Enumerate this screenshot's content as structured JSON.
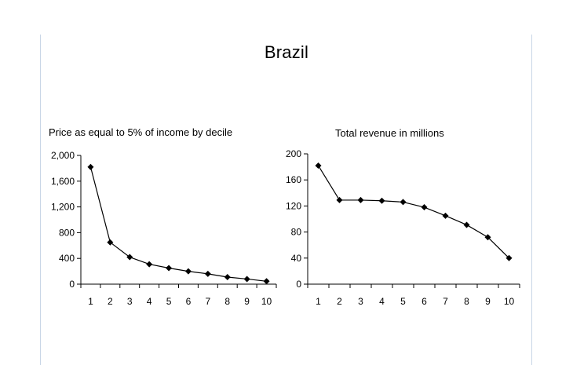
{
  "title": "Brazil",
  "chart_data": [
    {
      "type": "line",
      "title": "Price as equal to 5% of income by decile",
      "xlabel": "",
      "ylabel": "",
      "x": [
        1,
        2,
        3,
        4,
        5,
        6,
        7,
        8,
        9,
        10
      ],
      "x_tick_labels": [
        "1",
        "2",
        "3",
        "4",
        "5",
        "6",
        "7",
        "8",
        "9",
        "10"
      ],
      "y_tick_labels": [
        "0",
        "400",
        "800",
        "1,200",
        "1,600",
        "2,000"
      ],
      "y_ticks": [
        0,
        400,
        800,
        1200,
        1600,
        2000
      ],
      "ylim": [
        0,
        2000
      ],
      "series": [
        {
          "values": [
            1820,
            650,
            420,
            310,
            250,
            200,
            160,
            110,
            80,
            45
          ]
        }
      ],
      "marker": "diamond",
      "line_color": "#000000",
      "grid": false,
      "legend": "none"
    },
    {
      "type": "line",
      "title": "Total revenue in millions",
      "xlabel": "",
      "ylabel": "",
      "x": [
        1,
        2,
        3,
        4,
        5,
        6,
        7,
        8,
        9,
        10
      ],
      "x_tick_labels": [
        "1",
        "2",
        "3",
        "4",
        "5",
        "6",
        "7",
        "8",
        "9",
        "10"
      ],
      "y_tick_labels": [
        "0",
        "40",
        "80",
        "120",
        "160",
        "200"
      ],
      "y_ticks": [
        0,
        40,
        80,
        120,
        160,
        200
      ],
      "ylim": [
        0,
        200
      ],
      "series": [
        {
          "values": [
            182,
            129,
            129,
            128,
            126,
            118,
            105,
            91,
            72,
            40
          ]
        }
      ],
      "marker": "diamond",
      "line_color": "#000000",
      "grid": false,
      "legend": "none"
    }
  ]
}
